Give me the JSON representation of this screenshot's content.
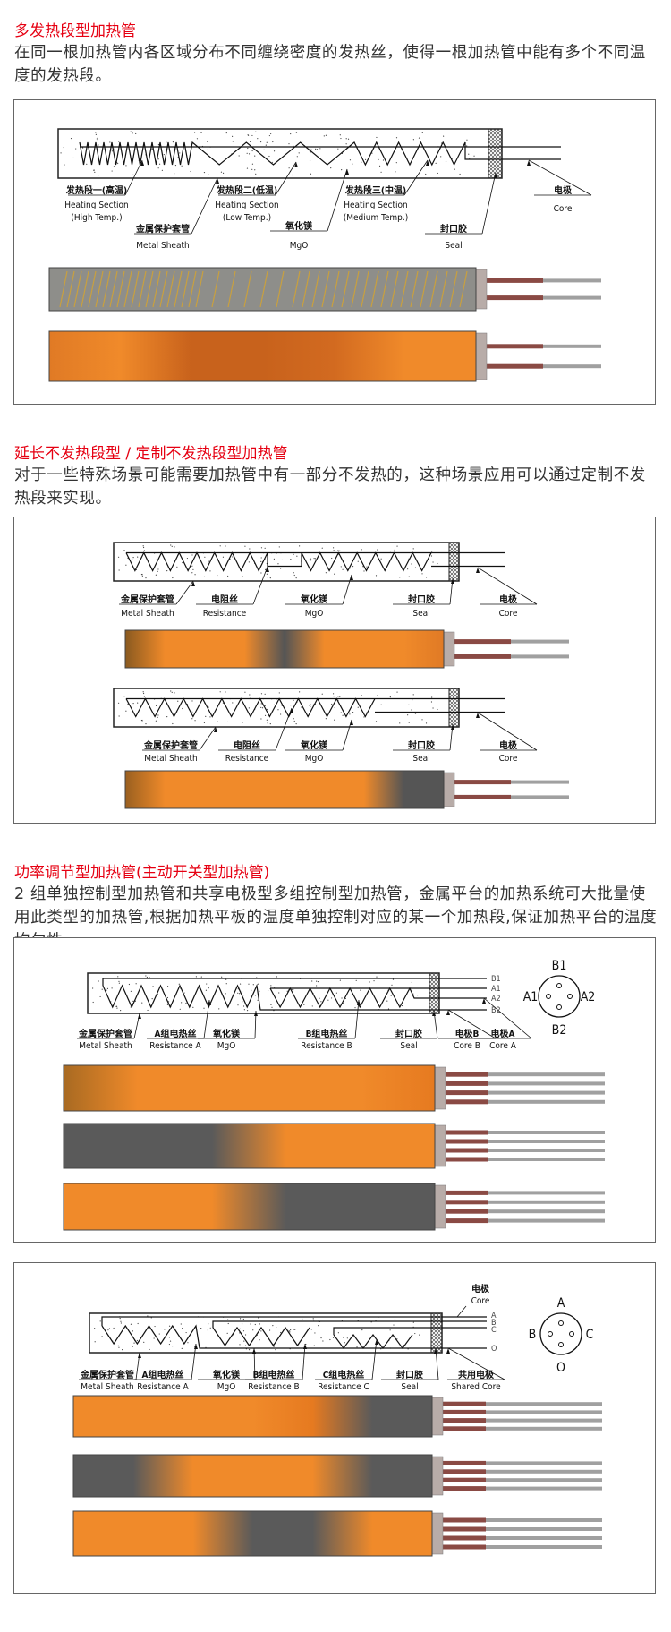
{
  "sections": [
    {
      "title": "多发热段型加热管",
      "text": "在同一根加热管内各区域分布不同缠绕密度的发热丝，使得一根加热管中能有多个不同温度的发热段。"
    },
    {
      "title": "延长不发热段型 / 定制不发热段型加热管",
      "text": "对于一些特殊场景可能需要加热管中有一部分不发热的，这种场景应用可以通过定制不发热段来实现。"
    },
    {
      "title": "功率调节型加热管(主动开关型加热管)",
      "text": "2 组单独控制型加热管和共享电极型多组控制型加热管，金属平台的加热系统可大批量使用此类型的加热管,根据加热平板的温度单独控制对应的某一个加热段,保证加热平台的温度均匀性。"
    }
  ],
  "diagram1": {
    "labels": {
      "hs1_cn": "发热段一(高温)",
      "hs1_en": "Heating Section",
      "hs1_sub": "(High Temp.)",
      "sheath_cn": "金属保护套管",
      "sheath_en": "Metal Sheath",
      "hs2_cn": "发热段二(低温)",
      "hs2_en": "Heating Section",
      "hs2_sub": "(Low Temp.)",
      "mgo_cn": "氧化镁",
      "mgo_en": "MgO",
      "hs3_cn": "发热段三(中温)",
      "hs3_en": "Heating Section",
      "hs3_sub": "(Medium Temp.)",
      "seal_cn": "封口胶",
      "seal_en": "Seal",
      "core_cn": "电极",
      "core_en": "Core"
    }
  },
  "diagram2": {
    "labels": {
      "sheath_cn": "金属保护套管",
      "sheath_en": "Metal Sheath",
      "res_cn": "电阻丝",
      "res_en": "Resistance",
      "mgo_cn": "氧化镁",
      "mgo_en": "MgO",
      "seal_cn": "封口胶",
      "seal_en": "Seal",
      "core_cn": "电极",
      "core_en": "Core"
    }
  },
  "diagram3": {
    "labels": {
      "sheath_cn": "金属保护套管",
      "sheath_en": "Metal Sheath",
      "resa_cn": "A组电热丝",
      "resa_en": "Resistance A",
      "mgo_cn": "氧化镁",
      "mgo_en": "MgO",
      "resb_cn": "B组电热丝",
      "resb_en": "Resistance B",
      "seal_cn": "封口胶",
      "seal_en": "Seal",
      "coreb_cn": "电极B",
      "coreb_en": "Core B",
      "corea_cn": "电极A",
      "corea_en": "Core A"
    },
    "wires": [
      "B1",
      "A1",
      "A2",
      "B2"
    ],
    "pins": {
      "top": "B1",
      "left": "A1",
      "right": "A2",
      "bottom": "B2"
    }
  },
  "diagram4": {
    "labels": {
      "core_cn": "电极",
      "core_en": "Core",
      "sheath_cn": "金属保护套管",
      "sheath_en": "Metal Sheath",
      "resa_cn": "A组电热丝",
      "resa_en": "Resistance A",
      "mgo_cn": "氧化镁",
      "mgo_en": "MgO",
      "resb_cn": "B组电热丝",
      "resb_en": "Resistance B",
      "resc_cn": "C组电热丝",
      "resc_en": "Resistance C",
      "seal_cn": "封口胶",
      "seal_en": "Seal",
      "shared_cn": "共用电极",
      "shared_en": "Shared Core"
    },
    "wires": [
      "A",
      "B",
      "C",
      "O"
    ],
    "pins": {
      "top": "A",
      "left": "B",
      "right": "C",
      "bottom": "O"
    }
  },
  "colors": {
    "title": "#e60012",
    "orange": "#f08a2a",
    "dark": "#5a5a5a",
    "sheath_grey": "#8e8e8a",
    "coil_gold": "#c8a040",
    "wire_red": "#8a4a44",
    "wire_grey": "#a0a0a0"
  },
  "tubes": {
    "t1a": {
      "style": "coil",
      "zones": [
        "#8e8e8a"
      ]
    },
    "t1b": {
      "zones": [
        "#e07a25",
        "#f08a2a",
        "#c8621c",
        "#c8621c",
        "#d26a20",
        "#f08a2a",
        "#f08a2a"
      ]
    },
    "t2a": {
      "zones": [
        "#8a5a20",
        "#f08a2a",
        "#f08a2a",
        "#f08a2a",
        "#555555",
        "#f08a2a",
        "#f08a2a",
        "#f08a2a",
        "#e07a25"
      ]
    },
    "t2b": {
      "zones": [
        "#9a6020",
        "#f08a2a",
        "#f08a2a",
        "#f08a2a",
        "#f08a2a",
        "#f08a2a",
        "#f08a2a",
        "#555555",
        "#555555"
      ]
    },
    "t3a": {
      "zones": [
        "#a86a22",
        "#f08a2a",
        "#f08a2a",
        "#f08a2a",
        "#f08a2a",
        "#e67a20"
      ],
      "wires": 4
    },
    "t3b": {
      "zones": [
        "#5a5a5a",
        "#5a5a5a",
        "#5a5a5a",
        "#f08a2a",
        "#f08a2a",
        "#f08a2a"
      ],
      "wires": 4
    },
    "t3c": {
      "zones": [
        "#f08a2a",
        "#f08a2a",
        "#f08a2a",
        "#5a5a5a",
        "#5a5a5a",
        "#5a5a5a"
      ],
      "wires": 4
    },
    "t4a": {
      "zones": [
        "#f08a2a",
        "#f08a2a",
        "#f08a2a",
        "#f08a2a",
        "#e67a20",
        "#5a5a5a",
        "#5a5a5a"
      ],
      "wires": 4
    },
    "t4b": {
      "zones": [
        "#5a5a5a",
        "#5a5a5a",
        "#f08a2a",
        "#f08a2a",
        "#f08a2a",
        "#5a5a5a",
        "#5a5a5a"
      ],
      "wires": 4
    },
    "t4c": {
      "zones": [
        "#f08a2a",
        "#f08a2a",
        "#f08a2a",
        "#5a5a5a",
        "#5a5a5a",
        "#f08a2a",
        "#f08a2a"
      ],
      "wires": 4
    }
  }
}
